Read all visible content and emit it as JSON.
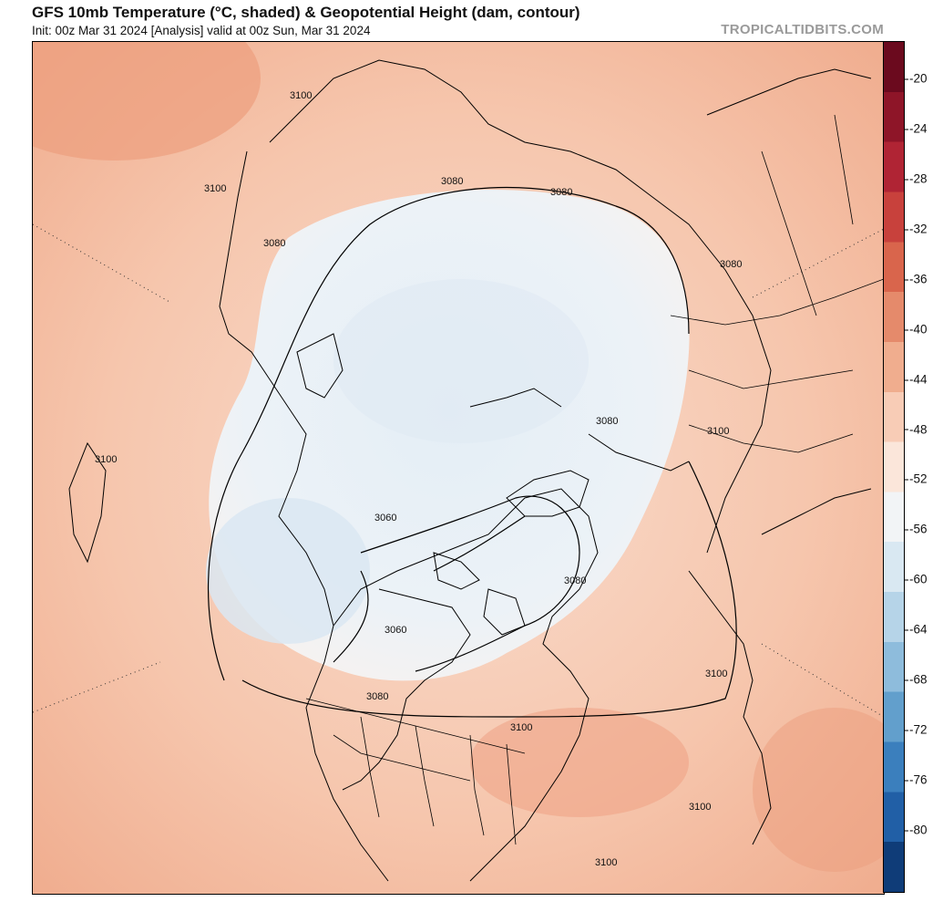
{
  "header": {
    "title": "GFS 10mb Temperature (°C, shaded) & Geopotential Height (dam, contour)",
    "subtitle": "Init: 00z Mar 31 2024   [Analysis]   valid at 00z Sun, Mar 31 2024",
    "credit": "TROPICALTIDBITS.COM"
  },
  "colorbar": {
    "unit": "°C",
    "ticks": [
      "-20",
      "-24",
      "-28",
      "-32",
      "-36",
      "-40",
      "-44",
      "-48",
      "-52",
      "-56",
      "-60",
      "-64",
      "-68",
      "-72",
      "-76",
      "-80"
    ],
    "colors": [
      "#6b0a1e",
      "#8e1528",
      "#b02434",
      "#c8413c",
      "#d9654c",
      "#e58a6b",
      "#f0ad8e",
      "#f8ccb6",
      "#fbe6da",
      "#f2f4f6",
      "#d9e8f2",
      "#b6d4e8",
      "#8ebcdc",
      "#629fcc",
      "#3b7fbd",
      "#215fa6",
      "#0f3c78"
    ]
  },
  "map": {
    "background_color": "#f6c6ad",
    "cold_color": "#e6f0f7",
    "contour_labels": [
      {
        "text": "3100"
      },
      {
        "text": "3100"
      },
      {
        "text": "3080"
      },
      {
        "text": "3080"
      },
      {
        "text": "3080"
      },
      {
        "text": "3080"
      },
      {
        "text": "3080"
      },
      {
        "text": "3100"
      },
      {
        "text": "3100"
      },
      {
        "text": "3060"
      },
      {
        "text": "3080"
      },
      {
        "text": "3060"
      },
      {
        "text": "3080"
      },
      {
        "text": "3100"
      },
      {
        "text": "3100"
      },
      {
        "text": "3100"
      },
      {
        "text": "3100"
      }
    ]
  }
}
